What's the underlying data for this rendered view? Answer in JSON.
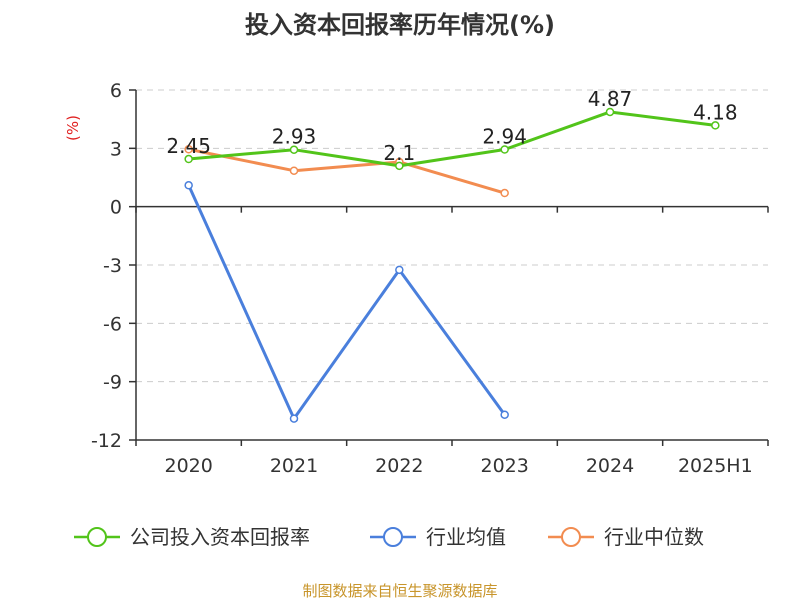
{
  "chart_data": {
    "type": "line",
    "title": "投入资本回报率历年情况(%)",
    "ylabel": "(%)",
    "categories": [
      "2020",
      "2021",
      "2022",
      "2023",
      "2024",
      "2025H1"
    ],
    "ylim": [
      -12,
      6
    ],
    "yticks": [
      6,
      3,
      0,
      -3,
      -6,
      -9,
      -12
    ],
    "grid": true,
    "legend_position": "bottom",
    "series": [
      {
        "name": "公司投入资本回报率",
        "color": "#52c41a",
        "values": [
          2.45,
          2.93,
          2.1,
          2.94,
          4.87,
          4.18
        ],
        "labels": [
          "2.45",
          "2.93",
          "2.1",
          "2.94",
          "4.87",
          "4.18"
        ]
      },
      {
        "name": "行业均值",
        "color": "#4a7fdc",
        "values": [
          1.1,
          -10.9,
          -3.25,
          -10.7,
          null,
          null
        ],
        "labels": []
      },
      {
        "name": "行业中位数",
        "color": "#f28c50",
        "values": [
          2.95,
          1.85,
          2.3,
          0.7,
          null,
          null
        ],
        "labels": []
      }
    ]
  },
  "source": "制图数据来自恒生聚源数据库"
}
